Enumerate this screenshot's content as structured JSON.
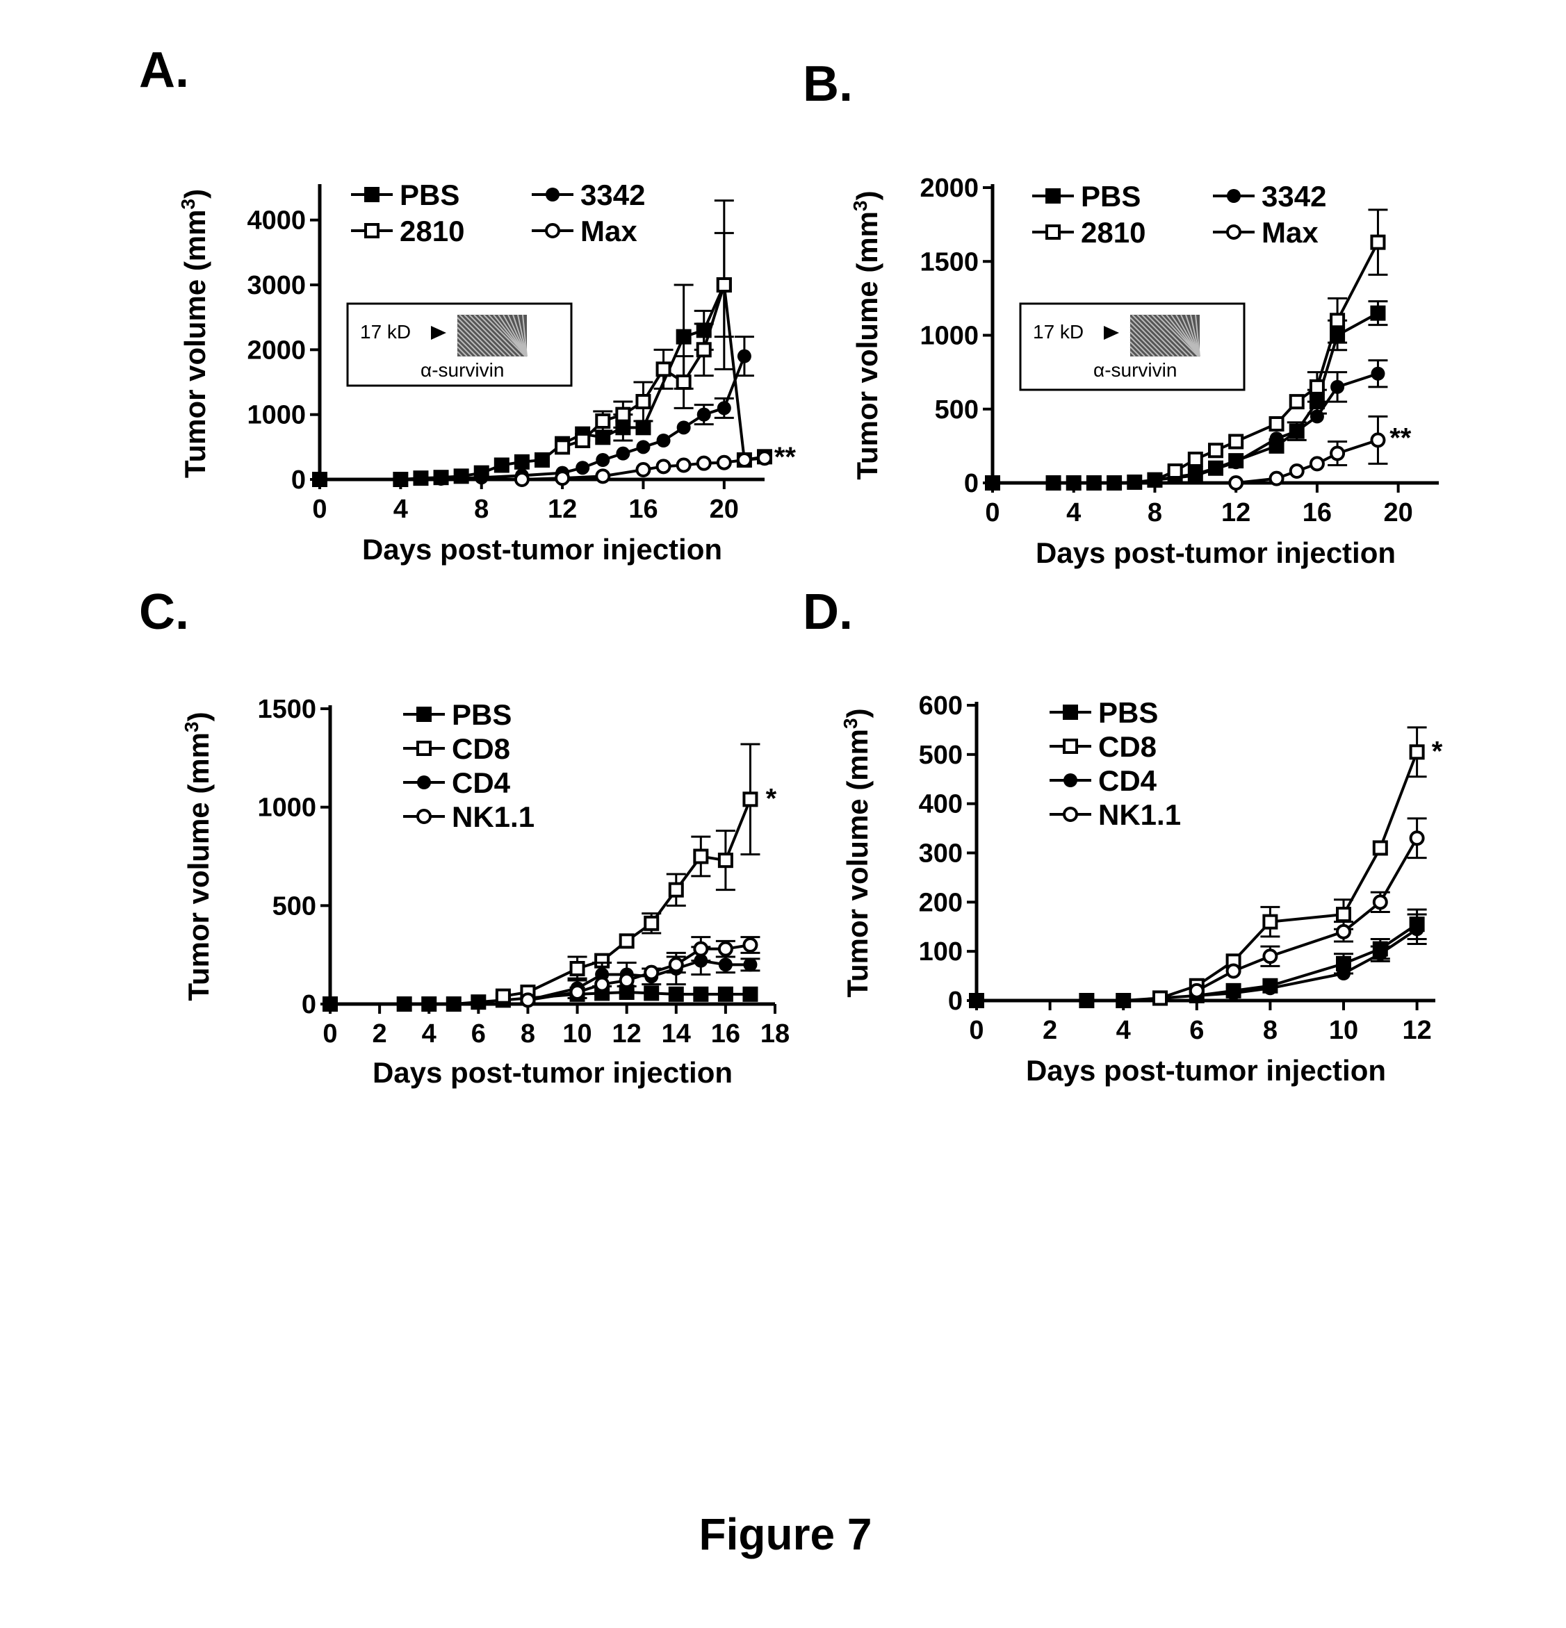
{
  "figure_title": "Figure 7",
  "colors": {
    "ink": "#000000",
    "background": "#ffffff"
  },
  "chart_data": [
    {
      "panel": "A.",
      "type": "line",
      "xlabel": "Days post-tumor injection",
      "ylabel": "Tumor volume (mm3)",
      "xlim": [
        0,
        22
      ],
      "ylim": [
        0,
        4500
      ],
      "xticks": [
        0,
        4,
        8,
        12,
        16,
        20
      ],
      "yticks": [
        0,
        1000,
        2000,
        3000,
        4000
      ],
      "legend_placement": "top-left",
      "legend_columns": 2,
      "series": [
        {
          "name": "PBS",
          "marker": "square-filled",
          "x": [
            0,
            4,
            5,
            6,
            7,
            8,
            9,
            10,
            11,
            12,
            13,
            14,
            15,
            16,
            18,
            19,
            20
          ],
          "y": [
            0,
            0,
            20,
            30,
            50,
            100,
            220,
            270,
            300,
            550,
            700,
            650,
            800,
            800,
            2200,
            2300,
            3000
          ],
          "err": [
            0,
            0,
            0,
            0,
            0,
            0,
            0,
            0,
            0,
            0,
            0,
            0,
            200,
            0,
            800,
            300,
            1300
          ]
        },
        {
          "name": "2810",
          "marker": "square-open",
          "x": [
            12,
            13,
            14,
            15,
            16,
            17,
            18,
            19,
            20,
            21,
            22
          ],
          "y": [
            500,
            600,
            900,
            1000,
            1200,
            1700,
            1500,
            2000,
            3000,
            300,
            350
          ],
          "err": [
            0,
            0,
            150,
            200,
            300,
            300,
            400,
            400,
            800,
            0,
            0
          ]
        },
        {
          "name": "3342",
          "marker": "circle-filled",
          "x": [
            4,
            6,
            8,
            10,
            12,
            13,
            14,
            15,
            16,
            17,
            18,
            19,
            20,
            21
          ],
          "y": [
            0,
            10,
            30,
            60,
            100,
            180,
            300,
            400,
            500,
            600,
            800,
            1000,
            1100,
            1900
          ],
          "err": [
            0,
            0,
            0,
            0,
            0,
            0,
            0,
            0,
            0,
            0,
            0,
            150,
            150,
            300
          ]
        },
        {
          "name": "Max",
          "marker": "circle-open",
          "x": [
            10,
            12,
            14,
            16,
            17,
            18,
            19,
            20,
            21,
            22
          ],
          "y": [
            0,
            20,
            50,
            150,
            200,
            220,
            250,
            260,
            300,
            330
          ],
          "err": [
            0,
            0,
            0,
            0,
            0,
            0,
            0,
            0,
            0,
            0
          ]
        }
      ],
      "annotations": [
        {
          "text": "**",
          "x": 22.2,
          "y": 330
        }
      ],
      "inset": {
        "label_top": "17 kD",
        "label_bottom": "α-survivin"
      }
    },
    {
      "panel": "B.",
      "type": "line",
      "xlabel": "Days post-tumor injection",
      "ylabel": "Tumor volume (mm3)",
      "xlim": [
        0,
        22
      ],
      "ylim": [
        0,
        2000
      ],
      "xticks": [
        0,
        4,
        8,
        12,
        16,
        20
      ],
      "yticks": [
        0,
        500,
        1000,
        1500,
        2000
      ],
      "legend_placement": "top-left",
      "legend_columns": 2,
      "series": [
        {
          "name": "PBS",
          "marker": "square-filled",
          "x": [
            0,
            3,
            4,
            5,
            6,
            7,
            8,
            9,
            10,
            11,
            12,
            14,
            15,
            16,
            17,
            19
          ],
          "y": [
            0,
            0,
            0,
            0,
            0,
            5,
            20,
            40,
            60,
            100,
            150,
            250,
            350,
            550,
            1000,
            1150
          ],
          "err": [
            0,
            0,
            0,
            0,
            0,
            0,
            0,
            0,
            0,
            0,
            0,
            0,
            60,
            80,
            100,
            80
          ]
        },
        {
          "name": "2810",
          "marker": "square-open",
          "x": [
            8,
            9,
            10,
            11,
            12,
            14,
            15,
            16,
            17,
            19
          ],
          "y": [
            20,
            80,
            160,
            220,
            280,
            400,
            550,
            650,
            1100,
            1630
          ],
          "err": [
            0,
            0,
            0,
            0,
            0,
            0,
            0,
            100,
            150,
            220
          ]
        },
        {
          "name": "3342",
          "marker": "circle-filled",
          "x": [
            8,
            10,
            12,
            14,
            15,
            16,
            17,
            19
          ],
          "y": [
            20,
            50,
            140,
            300,
            350,
            450,
            650,
            740
          ],
          "err": [
            0,
            0,
            0,
            0,
            0,
            0,
            100,
            90
          ]
        },
        {
          "name": "Max",
          "marker": "circle-open",
          "x": [
            12,
            14,
            15,
            16,
            17,
            19
          ],
          "y": [
            0,
            30,
            80,
            130,
            200,
            290
          ],
          "err": [
            0,
            0,
            0,
            0,
            80,
            160
          ]
        }
      ],
      "annotations": [
        {
          "text": "**",
          "x": 19.3,
          "y": 300
        }
      ],
      "inset": {
        "label_top": "17 kD",
        "label_bottom": "α-survivin"
      }
    },
    {
      "panel": "C.",
      "type": "line",
      "xlabel": "Days post-tumor injection",
      "ylabel": "Tumor volume (mm3)",
      "xlim": [
        0,
        18
      ],
      "ylim": [
        0,
        1500
      ],
      "xticks": [
        0,
        2,
        4,
        6,
        8,
        10,
        12,
        14,
        16,
        18
      ],
      "yticks": [
        0,
        500,
        1000,
        1500
      ],
      "legend_placement": "top-left",
      "legend_columns": 1,
      "series": [
        {
          "name": "PBS",
          "marker": "square-filled",
          "x": [
            0,
            3,
            4,
            5,
            6,
            7,
            8,
            10,
            11,
            12,
            13,
            14,
            15,
            16,
            17
          ],
          "y": [
            0,
            0,
            0,
            0,
            10,
            20,
            30,
            50,
            55,
            60,
            55,
            50,
            50,
            50,
            50
          ],
          "err": [
            0,
            0,
            0,
            0,
            0,
            0,
            0,
            0,
            0,
            0,
            0,
            0,
            0,
            0,
            0
          ]
        },
        {
          "name": "CD8",
          "marker": "square-open",
          "x": [
            7,
            8,
            10,
            11,
            12,
            13,
            14,
            15,
            16,
            17
          ],
          "y": [
            40,
            60,
            180,
            220,
            320,
            410,
            580,
            750,
            730,
            1040
          ],
          "err": [
            0,
            0,
            60,
            0,
            0,
            50,
            80,
            100,
            150,
            280
          ]
        },
        {
          "name": "CD4",
          "marker": "circle-filled",
          "x": [
            8,
            10,
            11,
            12,
            13,
            14,
            15,
            16,
            17
          ],
          "y": [
            20,
            80,
            150,
            150,
            140,
            180,
            220,
            200,
            200
          ],
          "err": [
            0,
            50,
            60,
            60,
            40,
            80,
            70,
            40,
            30
          ]
        },
        {
          "name": "NK1.1",
          "marker": "circle-open",
          "x": [
            8,
            10,
            11,
            12,
            13,
            14,
            15,
            16,
            17
          ],
          "y": [
            20,
            60,
            100,
            120,
            160,
            200,
            280,
            280,
            300
          ],
          "err": [
            0,
            0,
            0,
            0,
            0,
            40,
            60,
            40,
            40
          ]
        }
      ],
      "annotations": [
        {
          "text": "*",
          "x": 17.4,
          "y": 1040
        }
      ]
    },
    {
      "panel": "D.",
      "type": "line",
      "xlabel": "Days post-tumor injection",
      "ylabel": "Tumor volume (mm3)",
      "xlim": [
        0,
        12.5
      ],
      "ylim": [
        0,
        600
      ],
      "xticks": [
        0,
        2,
        4,
        6,
        8,
        10,
        12
      ],
      "yticks": [
        0,
        100,
        200,
        300,
        400,
        500,
        600
      ],
      "legend_placement": "top-left",
      "legend_columns": 1,
      "series": [
        {
          "name": "PBS",
          "marker": "square-filled",
          "x": [
            0,
            3,
            4,
            5,
            6,
            7,
            8,
            10,
            11,
            12
          ],
          "y": [
            0,
            0,
            0,
            5,
            10,
            20,
            30,
            75,
            105,
            155
          ],
          "err": [
            0,
            0,
            0,
            0,
            0,
            0,
            0,
            20,
            20,
            30
          ]
        },
        {
          "name": "CD8",
          "marker": "square-open",
          "x": [
            5,
            6,
            7,
            8,
            10,
            11,
            12
          ],
          "y": [
            5,
            30,
            80,
            160,
            175,
            310,
            505
          ],
          "err": [
            0,
            0,
            0,
            30,
            30,
            0,
            50
          ]
        },
        {
          "name": "CD4",
          "marker": "circle-filled",
          "x": [
            6,
            7,
            8,
            10,
            11,
            12
          ],
          "y": [
            10,
            15,
            25,
            55,
            95,
            145
          ],
          "err": [
            0,
            0,
            0,
            0,
            15,
            30
          ]
        },
        {
          "name": "NK1.1",
          "marker": "circle-open",
          "x": [
            6,
            7,
            8,
            10,
            11,
            12
          ],
          "y": [
            20,
            60,
            90,
            140,
            200,
            330
          ],
          "err": [
            0,
            0,
            20,
            20,
            20,
            40
          ]
        }
      ],
      "annotations": [
        {
          "text": "*",
          "x": 12.25,
          "y": 505
        }
      ]
    }
  ]
}
